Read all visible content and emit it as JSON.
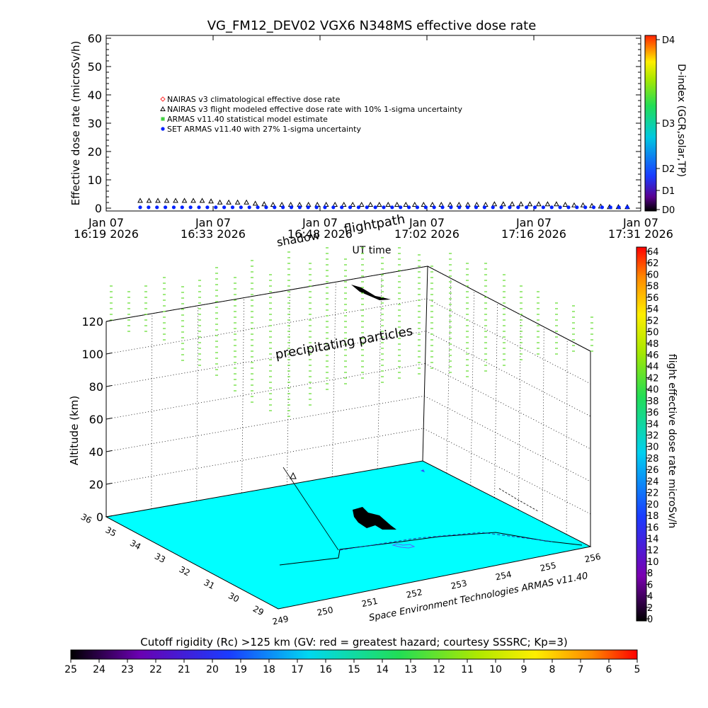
{
  "chart_data": [
    {
      "type": "scatter",
      "title": "VG_FM12_DEV02 VGX6 N348MS effective dose rate",
      "xlabel": "UT time",
      "ylabel": "Effective dose rate (microSv/h)",
      "ylim": [
        0,
        60
      ],
      "y_ticks": [
        "0",
        "10",
        "20",
        "30",
        "40",
        "50",
        "60"
      ],
      "x_ticks": [
        {
          "l1": "Jan 07",
          "l2": "16:19 2026"
        },
        {
          "l1": "Jan 07",
          "l2": "16:33 2026"
        },
        {
          "l1": "Jan 07",
          "l2": "16:48 2026"
        },
        {
          "l1": "Jan 07",
          "l2": "17:02 2026"
        },
        {
          "l1": "Jan 07",
          "l2": "17:16 2026"
        },
        {
          "l1": "Jan 07",
          "l2": "17:31 2026"
        }
      ],
      "legend": [
        {
          "label": "NAIRAS v3 climatological effective dose rate",
          "color": "#ff3030",
          "marker": "diamond"
        },
        {
          "label": "NAIRAS v3 flight modeled effective dose rate with 10% 1-sigma uncertainty",
          "color": "#000000",
          "marker": "triangle"
        },
        {
          "label": "ARMAS v11.40 statistical model estimate",
          "color": "#33cc33",
          "marker": "star"
        },
        {
          "label": "SET ARMAS v11.40 with 27% 1-sigma uncertainty",
          "color": "#0022ff",
          "marker": "dot"
        }
      ],
      "series": [
        {
          "name": "NAIRAS v3 flight modeled effective dose rate with 10% 1-sigma uncertainty",
          "values": [
            2.4,
            2.4,
            2.4,
            2.4,
            2.4,
            2.4,
            2.4,
            2.4,
            2.2,
            1.8,
            1.8,
            1.8,
            1.8,
            1.4,
            1.2,
            1.0,
            1.0,
            1.0,
            1.0,
            1.0,
            1.0,
            1.0,
            1.0,
            1.0,
            1.0,
            1.0,
            1.0,
            1.0,
            1.0,
            1.0,
            1.0,
            1.0,
            1.0,
            1.0,
            1.0,
            1.0,
            1.0,
            1.0,
            1.0,
            1.0,
            1.2,
            1.2,
            1.2,
            1.2,
            1.2,
            1.2,
            1.2,
            1.2,
            1.0,
            0.8,
            0.8,
            0.6,
            0.4,
            0.2,
            0.2,
            0.2
          ]
        },
        {
          "name": "SET ARMAS v11.40 with 27% 1-sigma uncertainty",
          "values": [
            0.3,
            0.3,
            0.3,
            0.3,
            0.3,
            0.3,
            0.3,
            0.3,
            0.3,
            0.3,
            0.3,
            0.3,
            0.3,
            0.3,
            0.3,
            0.3,
            0.3,
            0.3,
            0.3,
            0.3,
            0.3,
            0.3,
            0.3,
            0.3,
            0.3,
            0.3,
            0.3,
            0.3,
            0.3,
            0.3,
            0.3,
            0.3,
            0.3,
            0.3,
            0.3,
            0.3,
            0.3,
            0.3,
            0.3,
            0.3,
            0.3,
            0.3,
            0.3,
            0.3,
            0.3,
            0.3,
            0.3,
            0.3,
            0.3,
            0.3,
            0.3,
            0.3,
            0.3,
            0.3,
            0.3,
            0.3,
            0.3,
            0.3,
            0.3
          ]
        }
      ],
      "d_index": {
        "label": "D-index (GCR,solar,TP)",
        "ticks": [
          {
            "label": "D0",
            "value": 0
          },
          {
            "label": "D1",
            "value": 1
          },
          {
            "label": "D2",
            "value": 2
          },
          {
            "label": "D3",
            "value": 3
          },
          {
            "label": "D4",
            "value": 4
          }
        ]
      }
    },
    {
      "type": "scatter",
      "title": "",
      "zlabel": "Altitude (km)",
      "z_ticks": [
        "0",
        "20",
        "40",
        "60",
        "80",
        "100",
        "120"
      ],
      "lon_ticks": [
        "249",
        "250",
        "251",
        "252",
        "253",
        "254",
        "255",
        "256"
      ],
      "lat_ticks": [
        "29",
        "30",
        "31",
        "32",
        "33",
        "34",
        "35",
        "36"
      ],
      "annotations": [
        "shadow",
        "flightpath",
        "precipitating particles"
      ],
      "credit": "Space Environment Technologies ARMAS v11.40",
      "dose_colorbar": {
        "label": "flight effective dose rate microSv/h",
        "ticks": [
          "0",
          "2",
          "4",
          "6",
          "8",
          "10",
          "12",
          "14",
          "16",
          "18",
          "20",
          "22",
          "24",
          "26",
          "28",
          "30",
          "32",
          "34",
          "36",
          "38",
          "40",
          "42",
          "44",
          "46",
          "48",
          "50",
          "52",
          "54",
          "56",
          "58",
          "60",
          "62",
          "64"
        ]
      },
      "rigidity_colorbar": {
        "label": "Cutoff rigidity (Rc) >125 km (GV: red = greatest hazard; courtesy SSSRC; Kp=3)",
        "ticks": [
          "25",
          "24",
          "23",
          "22",
          "21",
          "20",
          "19",
          "18",
          "17",
          "16",
          "15",
          "14",
          "13",
          "12",
          "11",
          "10",
          "9",
          "8",
          "7",
          "6",
          "5"
        ]
      },
      "floor_color": "#00ffff",
      "particle_color": "#66dd33"
    }
  ]
}
